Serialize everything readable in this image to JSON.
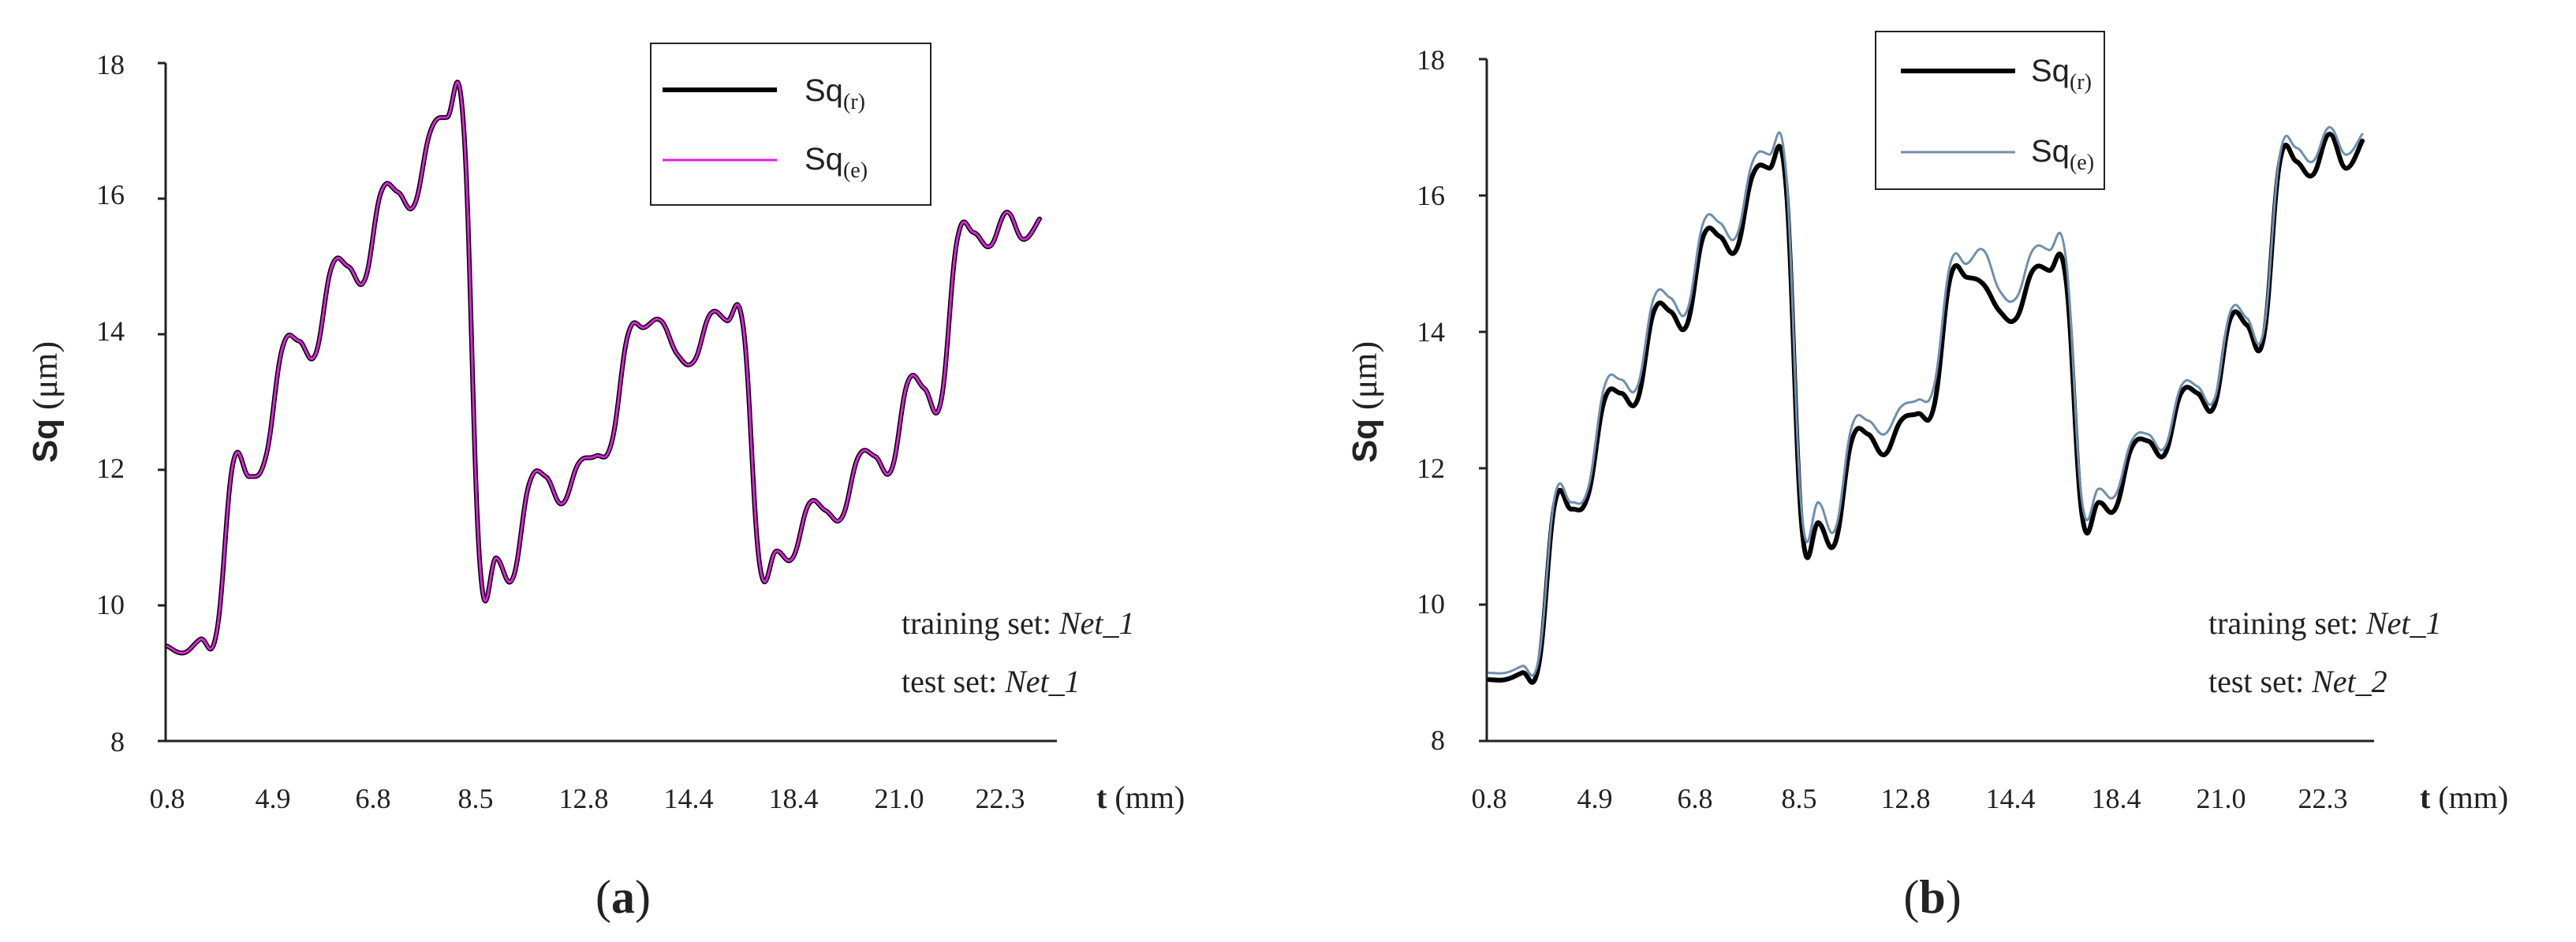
{
  "chart_data": [
    {
      "type": "line",
      "panel_label": {
        "open": "(",
        "letter": "a",
        "close": ")"
      },
      "ylabel": {
        "base": "Sq",
        "unit": " (μm)"
      },
      "xlabel": {
        "symbol": "t",
        "unit": " (mm)"
      },
      "ylim": [
        8,
        18
      ],
      "yticks": [
        "8",
        "10",
        "12",
        "14",
        "16",
        "18"
      ],
      "x_tick_labels": [
        "0.8",
        "4.9",
        "6.8",
        "8.5",
        "12.8",
        "14.4",
        "18.4",
        "21.0",
        "22.3"
      ],
      "annotations": [
        {
          "prefix": "training set: ",
          "value": "Net_1"
        },
        {
          "prefix": "test set: ",
          "value": "Net_1"
        }
      ],
      "series": [
        {
          "name": "Sq",
          "subscript": "(r)",
          "color": "#000000",
          "width": 6,
          "values": [
            9.4,
            9.3,
            9.5,
            9.6,
            12.1,
            11.9,
            12.2,
            13.8,
            13.9,
            13.7,
            15.0,
            15.0,
            14.8,
            16.1,
            16.1,
            15.9,
            17.0,
            17.2,
            17.1,
            10.6,
            10.7,
            10.4,
            11.8,
            11.9,
            11.5,
            12.1,
            12.2,
            12.4,
            14.0,
            14.1,
            14.2,
            13.7,
            13.6,
            14.3,
            14.2,
            14.1,
            10.6,
            10.8,
            10.7,
            11.5,
            11.4,
            11.3,
            12.2,
            12.2,
            12.0,
            13.3,
            13.2,
            13.0,
            15.4,
            15.5,
            15.3,
            15.8,
            15.4,
            15.7
          ]
        },
        {
          "name": "Sq",
          "subscript": "(e)",
          "color": "#dd22dd",
          "width": 3,
          "values": [
            9.4,
            9.3,
            9.5,
            9.6,
            12.1,
            11.9,
            12.2,
            13.8,
            13.9,
            13.7,
            15.0,
            15.0,
            14.8,
            16.1,
            16.1,
            15.9,
            17.0,
            17.2,
            17.1,
            10.6,
            10.7,
            10.4,
            11.8,
            11.9,
            11.5,
            12.1,
            12.2,
            12.4,
            14.0,
            14.1,
            14.2,
            13.7,
            13.6,
            14.3,
            14.2,
            14.1,
            10.6,
            10.8,
            10.7,
            11.5,
            11.4,
            11.3,
            12.2,
            12.2,
            12.0,
            13.3,
            13.2,
            13.0,
            15.4,
            15.5,
            15.3,
            15.8,
            15.4,
            15.7
          ]
        }
      ]
    },
    {
      "type": "line",
      "panel_label": {
        "open": "(",
        "letter": "b",
        "close": ")"
      },
      "ylabel": {
        "base": "Sq",
        "unit": " (μm)"
      },
      "xlabel": {
        "symbol": "t",
        "unit": " (mm)"
      },
      "ylim": [
        8,
        18
      ],
      "yticks": [
        "8",
        "10",
        "12",
        "14",
        "16",
        "18"
      ],
      "x_tick_labels": [
        "0.8",
        "4.9",
        "6.8",
        "8.5",
        "12.8",
        "14.4",
        "18.4",
        "21.0",
        "22.3"
      ],
      "annotations": [
        {
          "prefix": "training set: ",
          "value": "Net_1"
        },
        {
          "prefix": "test set: ",
          "value": "Net_2"
        }
      ],
      "series": [
        {
          "name": "Sq",
          "subscript": "(r)",
          "color": "#000000",
          "width": 6,
          "values": [
            8.9,
            8.9,
            9.0,
            9.1,
            11.5,
            11.4,
            11.6,
            13.0,
            13.1,
            13.0,
            14.3,
            14.3,
            14.1,
            15.4,
            15.4,
            15.2,
            16.3,
            16.4,
            16.2,
            11.1,
            11.2,
            10.9,
            12.4,
            12.5,
            12.2,
            12.7,
            12.8,
            12.9,
            14.8,
            14.8,
            14.7,
            14.3,
            14.2,
            14.9,
            14.9,
            14.8,
            11.3,
            11.5,
            11.4,
            12.3,
            12.4,
            12.2,
            13.1,
            13.1,
            12.9,
            14.2,
            14.1,
            13.9,
            16.5,
            16.5,
            16.3,
            16.9,
            16.4,
            16.8
          ]
        },
        {
          "name": "Sq",
          "subscript": "(e)",
          "color": "#6f8faf",
          "width": 3,
          "values": [
            9.0,
            9.0,
            9.1,
            9.2,
            11.6,
            11.5,
            11.7,
            13.2,
            13.3,
            13.2,
            14.5,
            14.5,
            14.3,
            15.6,
            15.6,
            15.4,
            16.5,
            16.6,
            16.4,
            11.3,
            11.5,
            11.1,
            12.6,
            12.7,
            12.5,
            12.9,
            13.0,
            13.2,
            15.0,
            15.0,
            15.2,
            14.6,
            14.5,
            15.2,
            15.2,
            15.1,
            11.5,
            11.7,
            11.6,
            12.4,
            12.5,
            12.3,
            13.2,
            13.2,
            13.0,
            14.3,
            14.2,
            14.0,
            16.6,
            16.7,
            16.5,
            17.0,
            16.6,
            16.9
          ]
        }
      ]
    }
  ]
}
